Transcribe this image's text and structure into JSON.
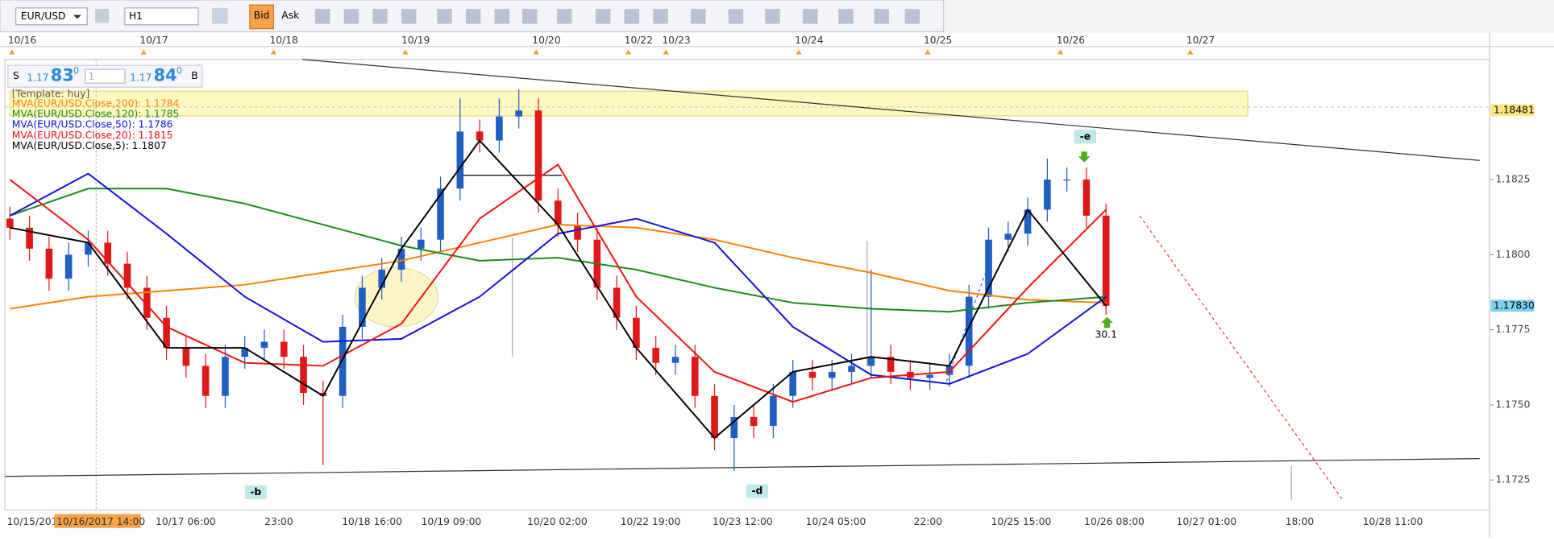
{
  "toolbar": {
    "symbol": "EUR/USD",
    "timeframe": "H1",
    "bid": "Bid",
    "ask": "Ask"
  },
  "trade_panel": {
    "sell": "S",
    "sell_big": "1.17",
    "sell_pips": "83",
    "sell_frac": "0",
    "lots": "1",
    "buy_big": "1.17",
    "buy_pips": "84",
    "buy_frac": "0",
    "buy": "B"
  },
  "legend_template": "[Template: huy]",
  "top_dates": [
    "10/16",
    "10/17",
    "10/18",
    "10/19",
    "10/20",
    "10/22",
    "10/23",
    "10/24",
    "10/25",
    "10/26",
    "10/27"
  ],
  "chart_data": {
    "type": "candlestick",
    "color_up": "#1f5fc4",
    "color_down": "#e01818",
    "open": [
      1.1812,
      1.1809,
      1.1802,
      1.1792,
      1.18,
      1.1804,
      1.1797,
      1.1789,
      1.1779,
      1.1769,
      1.1763,
      1.1753,
      1.1766,
      1.1769,
      1.1771,
      1.1766,
      1.1754,
      1.1753,
      1.1776,
      1.1789,
      1.1795,
      1.1802,
      1.1805,
      1.1822,
      1.1841,
      1.1838,
      1.1846,
      1.1848,
      1.1818,
      1.181,
      1.1805,
      1.1789,
      1.1779,
      1.1769,
      1.1764,
      1.1766,
      1.1753,
      1.1739,
      1.1746,
      1.1743,
      1.1753,
      1.1761,
      1.1759,
      1.1761,
      1.1763,
      1.1766,
      1.1761,
      1.1759,
      1.176,
      1.1763,
      1.1786,
      1.1805,
      1.1807,
      1.1815,
      1.1825,
      1.1825,
      1.1813
    ],
    "high": [
      1.1816,
      1.1813,
      1.1806,
      1.1804,
      1.1808,
      1.1808,
      1.1801,
      1.1793,
      1.1783,
      1.1773,
      1.1767,
      1.177,
      1.1773,
      1.1775,
      1.1775,
      1.177,
      1.1758,
      1.178,
      1.1793,
      1.1799,
      1.1806,
      1.1809,
      1.1826,
      1.1852,
      1.1845,
      1.1852,
      1.1855,
      1.1852,
      1.1822,
      1.1814,
      1.1809,
      1.1793,
      1.1783,
      1.1773,
      1.177,
      1.177,
      1.1757,
      1.175,
      1.175,
      1.1757,
      1.1765,
      1.1765,
      1.1765,
      1.1767,
      1.1795,
      1.177,
      1.1765,
      1.1764,
      1.1767,
      1.179,
      1.1809,
      1.1811,
      1.1819,
      1.1832,
      1.1829,
      1.1829,
      1.1817
    ],
    "low": [
      1.1805,
      1.1798,
      1.1788,
      1.1788,
      1.1796,
      1.1793,
      1.1785,
      1.1775,
      1.1765,
      1.1759,
      1.1749,
      1.1749,
      1.1762,
      1.1765,
      1.1762,
      1.175,
      1.173,
      1.1749,
      1.1772,
      1.1785,
      1.1791,
      1.1798,
      1.1801,
      1.1818,
      1.1834,
      1.1834,
      1.1842,
      1.1814,
      1.1806,
      1.1801,
      1.1785,
      1.1775,
      1.1765,
      1.176,
      1.176,
      1.1749,
      1.1735,
      1.1728,
      1.1739,
      1.1739,
      1.1749,
      1.1755,
      1.1755,
      1.1757,
      1.1759,
      1.1757,
      1.1755,
      1.1755,
      1.1756,
      1.1759,
      1.1782,
      1.1801,
      1.1803,
      1.1811,
      1.1821,
      1.1809,
      1.178
    ],
    "close": [
      1.1809,
      1.1802,
      1.1792,
      1.18,
      1.1804,
      1.1797,
      1.1789,
      1.1779,
      1.1769,
      1.1763,
      1.1753,
      1.1766,
      1.1769,
      1.1771,
      1.1766,
      1.1754,
      1.1753,
      1.1776,
      1.1789,
      1.1795,
      1.1802,
      1.1805,
      1.1822,
      1.1841,
      1.1838,
      1.1846,
      1.1848,
      1.1818,
      1.181,
      1.1805,
      1.1789,
      1.1779,
      1.1769,
      1.1764,
      1.1766,
      1.1753,
      1.1739,
      1.1746,
      1.1743,
      1.1753,
      1.1761,
      1.1759,
      1.1761,
      1.1763,
      1.1766,
      1.1761,
      1.1759,
      1.176,
      1.1763,
      1.1786,
      1.1805,
      1.1807,
      1.1815,
      1.1825,
      1.1825,
      1.1813,
      1.1783
    ],
    "series": [
      {
        "name": "MVA(EUR/USD.Close,200): 1.1784",
        "color": "#ff7f00",
        "x": [
          0,
          4,
          8,
          12,
          16,
          20,
          24,
          28,
          32,
          36,
          40,
          44,
          48,
          52,
          56
        ],
        "values": [
          1.1782,
          1.1786,
          1.1788,
          1.179,
          1.1794,
          1.1798,
          1.1804,
          1.181,
          1.1809,
          1.1805,
          1.1799,
          1.1794,
          1.1788,
          1.1785,
          1.1784
        ]
      },
      {
        "name": "MVA(EUR/USD.Close,120): 1.1785",
        "color": "#1a8a1a",
        "x": [
          0,
          4,
          8,
          12,
          16,
          20,
          24,
          28,
          32,
          36,
          40,
          44,
          48,
          52,
          56
        ],
        "values": [
          1.1813,
          1.1822,
          1.1822,
          1.1817,
          1.181,
          1.1803,
          1.1798,
          1.1799,
          1.1795,
          1.1789,
          1.1784,
          1.1782,
          1.1781,
          1.1784,
          1.1786
        ]
      },
      {
        "name": "MVA(EUR/USD.Close,50): 1.1786",
        "color": "#1010dd",
        "x": [
          0,
          4,
          8,
          12,
          16,
          20,
          24,
          28,
          32,
          36,
          40,
          44,
          48,
          52,
          56
        ],
        "values": [
          1.1813,
          1.1827,
          1.1807,
          1.1786,
          1.1771,
          1.1772,
          1.1786,
          1.1807,
          1.1812,
          1.1804,
          1.1776,
          1.176,
          1.1757,
          1.1767,
          1.1786
        ]
      },
      {
        "name": "MVA(EUR/USD.Close,20): 1.1815",
        "color": "#ee1111",
        "x": [
          0,
          4,
          8,
          12,
          16,
          20,
          24,
          28,
          32,
          36,
          40,
          44,
          48,
          52,
          56
        ],
        "values": [
          1.1825,
          1.1805,
          1.1776,
          1.1764,
          1.1763,
          1.1777,
          1.1812,
          1.183,
          1.1786,
          1.1761,
          1.1751,
          1.1759,
          1.1761,
          1.1789,
          1.1815
        ]
      },
      {
        "name": "MVA(EUR/USD.Close,5): 1.1807",
        "color": "#000000",
        "x": [
          0,
          4,
          8,
          12,
          16,
          20,
          24,
          28,
          32,
          36,
          40,
          44,
          48,
          52,
          56
        ],
        "values": [
          1.1809,
          1.1804,
          1.1769,
          1.1769,
          1.1753,
          1.1802,
          1.1838,
          1.181,
          1.1769,
          1.1739,
          1.1761,
          1.1766,
          1.1763,
          1.1815,
          1.1783
        ]
      }
    ],
    "ylim": [
      1.1715,
      1.1865
    ],
    "yticks": [
      1.1725,
      {
        "value": 1.175,
        "label": "1.1750"
      },
      1.1775,
      {
        "value": 1.18,
        "label": "1.1800"
      },
      1.1825
    ],
    "grid": false,
    "price_labels": [
      {
        "value": 1.18481,
        "label": "1.18481",
        "color": "#ffe680"
      },
      {
        "value": 1.1783,
        "label": "1.17830",
        "color": "#7fd0f0"
      }
    ],
    "x_labels": [
      "10/15/2017",
      "10/16/2017 14:00",
      "10/17 06:00",
      "23:00",
      "10/18 16:00",
      "10/19 09:00",
      "10/20 02:00",
      "10/22 19:00",
      "10/23 12:00",
      "10/24 05:00",
      "22:00",
      "10/25 15:00",
      "10/26 08:00",
      "10/27 01:00",
      "18:00",
      "10/28 11:00"
    ],
    "annotations": [
      "-b",
      "-d",
      "-e",
      "30.1"
    ]
  }
}
